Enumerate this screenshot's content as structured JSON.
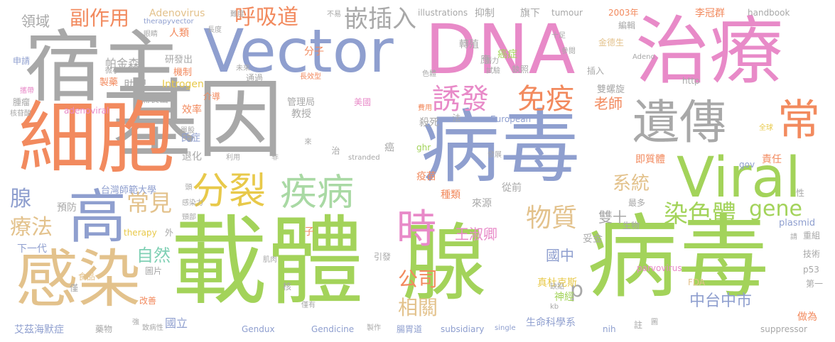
{
  "palette": {
    "gray": "#a8a8a8",
    "green": "#a3d35a",
    "pink": "#e88ac8",
    "blue": "#8f9fcf",
    "orange": "#f28a5e",
    "tan": "#e3c28c",
    "light_green": "#a9d9a4",
    "mint": "#7fd0b4",
    "yellow": "#e8c94a"
  },
  "words": {
    "jiyin": "基因",
    "bingdu_big": "病毒",
    "zaiti": "載體",
    "xian": "腺",
    "bingdu_right": "病毒",
    "dna": "DNA",
    "zhiliao": "治療",
    "vector": "Vector",
    "suzhu": "宿主",
    "xibao": "細胞",
    "ganran": "感染",
    "viral": "Viral",
    "yichuan": "遺傳",
    "gao": "高",
    "fenlie": "分裂",
    "jibing": "疾病",
    "shi": "時",
    "chang": "常",
    "youfa": "誘發",
    "mianyi": "免疫",
    "huxidao": "呼吸道",
    "qiancharu": "嵌插入",
    "fuzuoyong": "副作用",
    "changjian": "常見",
    "wuzhi": "物質",
    "ranseti": "染色體",
    "gene": "gene",
    "liaofa": "療法",
    "xian_small": "腺",
    "xiangguan": "相關",
    "gongsi": "公司",
    "xitong": "系統",
    "p": "p",
    "wangshuqing": "王淑卿",
    "shuangshi": "雙十",
    "guozhong": "國中",
    "zhongtaizhongshi": "中台中市",
    "laoshi": "老師",
    "ziran": "自然",
    "lingyu": "領域",
    "adenovirus": "Adenovirus",
    "renlei": "人類",
    "pajinsen": "帕金森",
    "zhuli": "助理",
    "introgen": "Introgen",
    "xiaolv": "效率",
    "jiaoshou": "教授",
    "shashi": "殺死",
    "zhuanzhi": "轉殖",
    "aizheng": "癌症",
    "taiwanshifandaxue": "台灣師範大學",
    "yimiao": "疫苗",
    "zhonglei": "種類",
    "guoli": "國立",
    "aizihaimozheng": "艾茲海默症",
    "gendux": "Gendux",
    "gendicine": "Gendicine",
    "subsidiary": "subsidiary",
    "shengmingkexuexi": "生命科學系",
    "shenjing": "神經",
    "zhenduokesi": "真杜克斯",
    "changweidao": "腸胃道",
    "plasmid": "plasmid",
    "p53": "p53",
    "suppressor": "suppressor",
    "nih": "nih",
    "zuowei": "做為",
    "lijiqun": "李冠群",
    "handbook": "handbook",
    "tumour": "tumour",
    "illustrations": "illustrations",
    "nian2003": "2003年",
    "bianji": "編輯",
    "qixia": "旗下",
    "yizhi": "抑制",
    "fenzi": "分子",
    "jiyisheng": "金德生",
    "shuangluoxuan": "雙螺旋",
    "jiji": "積極",
    "http": "http",
    "charu": "插入",
    "zhizhao": "執照",
    "ying": "應",
    "adenoviral": "adenoviral",
    "guanliju": "管理局",
    "european": "European",
    "meiguo": "美國",
    "fa": "法",
    "ai": "癌",
    "zhi": "治",
    "ghr": "ghr",
    "gov": "gov",
    "zeren": "責任",
    "jijiti": "即質體",
    "congqian": "從前",
    "laiyuan": "來源",
    "zuiduo": "最多",
    "tuihua": "退化",
    "shizheng": "氏症",
    "yufang": "預防",
    "xiayidai": "下一代",
    "therapy": "therapy",
    "wai": "外",
    "zi": "子",
    "yinfa": "引發",
    "tuopian": "圖片",
    "heihe": "核",
    "shengwu": "生物",
    "chongzu": "重組",
    "jishu": "技術",
    "diyi": "第一",
    "fda": "FDA",
    "parvovirus": "parvovirus",
    "tuoan": "妥金",
    "zhu": "註",
    "gaishan": "改善",
    "yaowu": "藥物",
    "jin": "僅",
    "shipin": "食品",
    "jizhi": "機制",
    "yanfachu": "研發出",
    "beizhichu": "備製出",
    "jiedao": "介導",
    "tongguo": "通過",
    "shenqing": "申請",
    "zhiyao": "製藥",
    "zhongliu": "腫瘤",
    "hetang": "核苷酸",
    "pan": "攜帶",
    "yanjing": "眼睛",
    "therapyvector": "therapyvector",
    "changdu": "長度",
    "nandu": "難度",
    "bukao": "不易",
    "shizu": "十足",
    "canshu": "參閱",
    "adeno": "Adeno",
    "stranded": "stranded",
    "single": "single",
    "kb": "kb",
    "quekou": "缺點",
    "quanqiu": "全球",
    "xing": "性",
    "zhibingxing": "致病性",
    "jirou": "肌肉",
    "zhizao": "製作",
    "qianli": "潛力",
    "shiyan": "試驗",
    "feiyong": "費用",
    "sese": "色體",
    "fazhan": "發展",
    "weixiao": "微小",
    "weilai": "未來",
    "changxiaoxing": "長效型",
    "ganranli": "感染力",
    "jingbu": "頸部",
    "tou": "頭",
    "danfu": "單股",
    "liyong": "利用",
    "fei": "非",
    "qiang": "強",
    "tu": "圖",
    "qing": "請",
    "zhulai": "來",
    "youxi": "僅有"
  }
}
